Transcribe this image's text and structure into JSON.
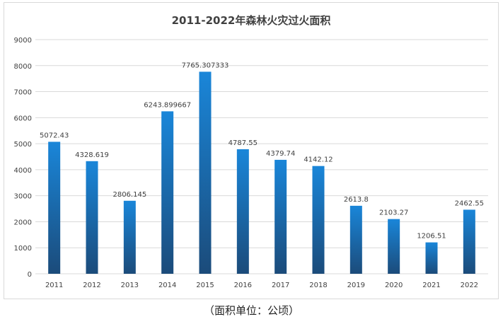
{
  "chart_data": {
    "type": "bar",
    "title": "2011-2022年森林火灾过火面积",
    "xlabel": "",
    "ylabel": "",
    "categories": [
      "2011",
      "2012",
      "2013",
      "2014",
      "2015",
      "2016",
      "2017",
      "2018",
      "2019",
      "2020",
      "2021",
      "2022"
    ],
    "values": [
      5072.43,
      4328.619,
      2806.145,
      6243.899667,
      7765.307333,
      4787.55,
      4379.74,
      4142.12,
      2613.8,
      2103.27,
      1206.51,
      2462.55
    ],
    "value_labels": [
      "5072.43",
      "4328.619",
      "2806.145",
      "6243.899667",
      "7765.307333",
      "4787.55",
      "4379.74",
      "4142.12",
      "2613.8",
      "2103.27",
      "1206.51",
      "2462.55"
    ],
    "ylim": [
      0,
      9000
    ],
    "yticks": [
      "0",
      "1000",
      "2000",
      "3000",
      "4000",
      "5000",
      "6000",
      "7000",
      "8000",
      "9000"
    ],
    "grid": true,
    "legend": "none",
    "bar_color_top": "#1a86d9",
    "bar_color_bottom": "#1b4b7a"
  },
  "caption": "（面积单位：公顷）"
}
